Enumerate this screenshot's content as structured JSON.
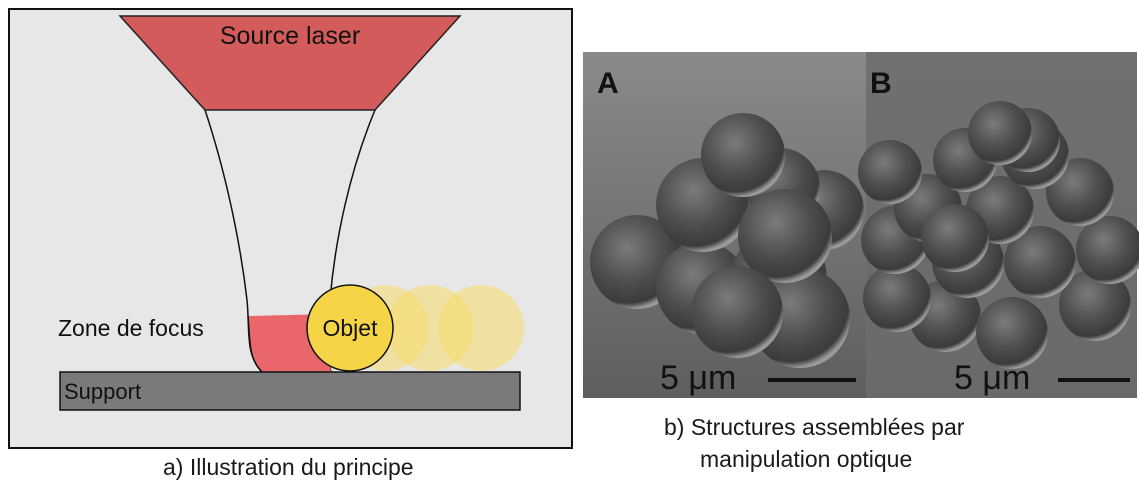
{
  "panel_a": {
    "caption": "a) Illustration du principe",
    "laser_label": "Source laser",
    "focus_label": "Zone de focus",
    "object_label": "Objet",
    "support_label": "Support",
    "colors": {
      "background": "#e7e7e7",
      "laser": "#d35b5c",
      "focus": "#e9676a",
      "object": "#f5d547",
      "object_ghost": "#f7dc6b",
      "support": "#7a7a7a"
    }
  },
  "panel_b": {
    "caption_line1": "b) Structures assemblées par",
    "caption_line2": "manipulation optique",
    "image_a_label": "A",
    "image_b_label": "B",
    "scale_a": "5 μm",
    "scale_b": "5 μm"
  }
}
